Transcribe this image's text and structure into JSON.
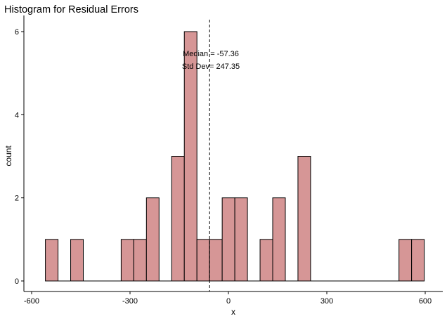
{
  "chart_data": {
    "type": "bar",
    "title": "Histogram for Residual Errors",
    "xlabel": "x",
    "ylabel": "count",
    "xlim": [
      -615,
      640
    ],
    "ylim": [
      0,
      6.1
    ],
    "x_ticks": [
      -600,
      -300,
      0,
      300,
      600
    ],
    "x_tick_labels": [
      "-600",
      "-300",
      "0",
      "300",
      "600"
    ],
    "y_ticks": [
      0,
      2,
      4,
      6
    ],
    "y_tick_labels": [
      "0",
      "2",
      "4",
      "6"
    ],
    "bin_width": 38.5,
    "bin_starts": [
      -558,
      -519.5,
      -481,
      -442.5,
      -404,
      -365.5,
      -327,
      -288.5,
      -250,
      -211.5,
      -173,
      -134.5,
      -96,
      -57.5,
      -19,
      19.5,
      58,
      96.5,
      135,
      173.5,
      212,
      250.5,
      289,
      327.5,
      366,
      404.5,
      443,
      481.5,
      520,
      558.5
    ],
    "values": [
      1,
      0,
      1,
      0,
      0,
      0,
      1,
      1,
      2,
      0,
      3,
      6,
      1,
      1,
      2,
      2,
      0,
      1,
      2,
      0,
      3,
      0,
      0,
      0,
      0,
      0,
      0,
      0,
      1,
      1
    ],
    "bar_fill": "#d69696",
    "bar_stroke": "#000000",
    "median_line": -57.36,
    "annotations": [
      "Median = -57.36",
      "Std Dev= 247.35"
    ],
    "grid": false
  }
}
